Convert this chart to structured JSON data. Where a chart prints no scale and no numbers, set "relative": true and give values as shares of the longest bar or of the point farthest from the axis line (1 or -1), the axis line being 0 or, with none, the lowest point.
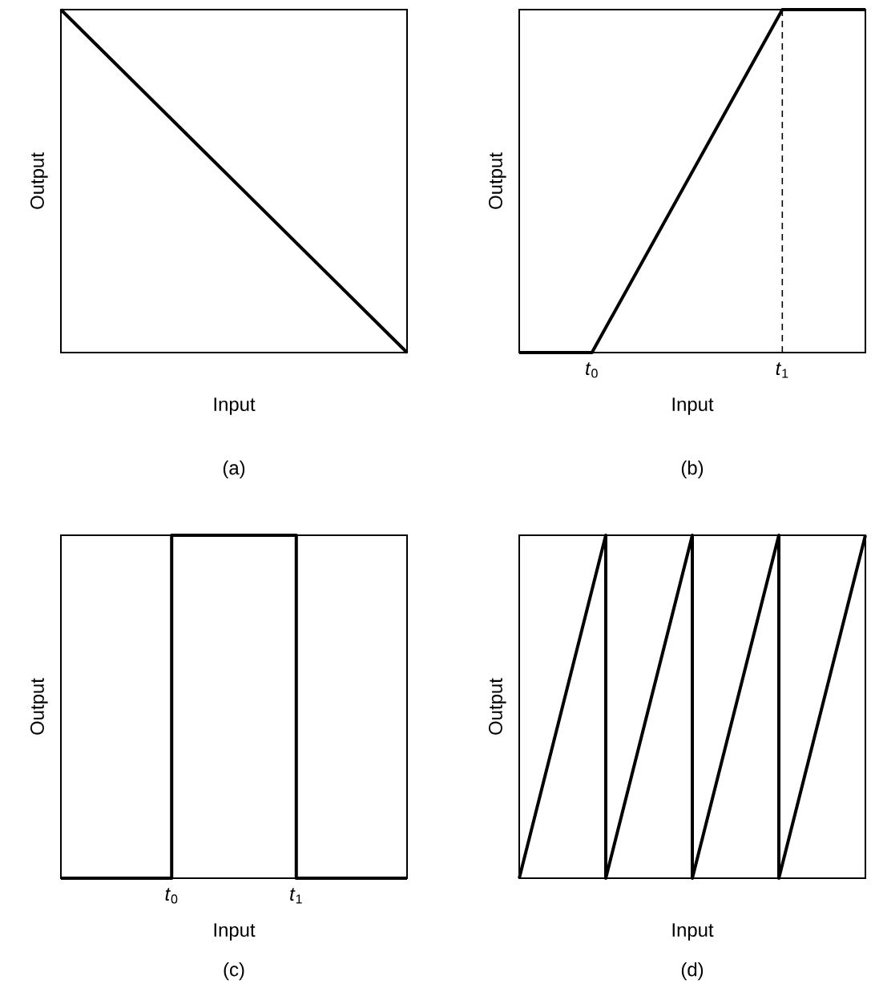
{
  "chart_data": [
    {
      "type": "line",
      "relative": true,
      "xlabel": "Input",
      "ylabel": "Output",
      "annotations": [
        "(a)"
      ],
      "tick_labels": false,
      "xlim": [
        0,
        1
      ],
      "color": "#000000",
      "x": [
        0,
        1
      ],
      "values": [
        1,
        0
      ]
    },
    {
      "type": "line",
      "relative": true,
      "xlabel": "Input",
      "ylabel": "Output",
      "annotations": [
        "(b)"
      ],
      "tick_labels": "x",
      "xlim": [
        0,
        1
      ],
      "color": "#000000",
      "xticks": [
        {
          "value": 0.21,
          "label": "*t*$_{0}$"
        },
        {
          "value": 0.76,
          "label": "*t*$_{1}$"
        }
      ],
      "ref_lines": [
        {
          "axis": "x",
          "value": 0.76,
          "color": "#000000",
          "line_style": "dashed"
        }
      ],
      "x": [
        0,
        0.21,
        0.76,
        1
      ],
      "values": [
        0,
        0,
        1,
        1
      ]
    },
    {
      "type": "line",
      "relative": true,
      "xlabel": "Input",
      "ylabel": "Output",
      "annotations": [
        "(c)"
      ],
      "tick_labels": "x",
      "xlim": [
        0,
        1
      ],
      "color": "#000000",
      "xticks": [
        {
          "value": 0.32,
          "label": "*t*$_{0}$"
        },
        {
          "value": 0.68,
          "label": "*t*$_{1}$"
        }
      ],
      "x": [
        0,
        0.32,
        0.32,
        0.68,
        0.68,
        1
      ],
      "values": [
        0,
        0,
        1,
        1,
        0,
        0
      ]
    },
    {
      "type": "line",
      "relative": true,
      "xlabel": "Input",
      "ylabel": "Output",
      "annotations": [
        "(d)"
      ],
      "tick_labels": false,
      "xlim": [
        0,
        1
      ],
      "color": "#000000",
      "x": [
        0,
        0.25,
        0.25,
        0.5,
        0.5,
        0.75,
        0.75,
        1
      ],
      "values": [
        0,
        1,
        0,
        1,
        0,
        1,
        0,
        1
      ]
    }
  ]
}
